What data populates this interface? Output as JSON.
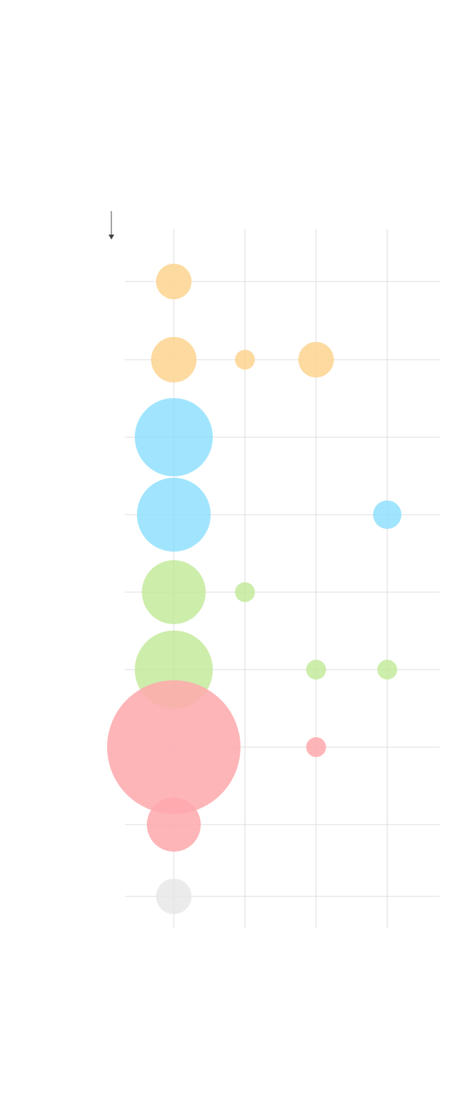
{
  "chart_data": {
    "type": "bubble-grid",
    "categories": [
      null,
      null,
      null,
      null
    ],
    "rows": [
      null,
      null,
      null,
      null,
      null,
      null,
      null,
      null,
      null
    ],
    "grid": true,
    "series": [
      {
        "color": "#fdd48f",
        "values": [
          25,
          null,
          null,
          null
        ]
      },
      {
        "color": "#fdd48f",
        "values": [
          32,
          14,
          25,
          null
        ]
      },
      {
        "color": "#8fe1fd",
        "values": [
          55,
          null,
          null,
          null
        ]
      },
      {
        "color": "#8fe1fd",
        "values": [
          52,
          null,
          null,
          20
        ]
      },
      {
        "color": "#c4ea9c",
        "values": [
          45,
          14,
          null,
          null
        ]
      },
      {
        "color": "#c4ea9c",
        "values": [
          55,
          null,
          14,
          14
        ]
      },
      {
        "color": "#fea8ac",
        "values": [
          94,
          null,
          14,
          null
        ]
      },
      {
        "color": "#fea8ac",
        "values": [
          38,
          null,
          null,
          null
        ]
      },
      {
        "color": "#e8e8e8",
        "values": [
          25,
          null,
          null,
          null
        ]
      }
    ]
  }
}
